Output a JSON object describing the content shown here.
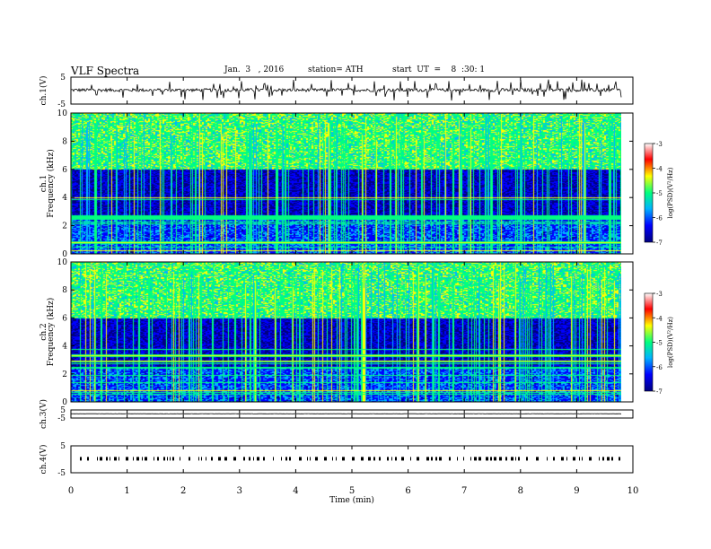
{
  "header": {
    "title": "VLF  Spectra",
    "date": "Jan.  3   , 2016",
    "station": "station= ATH",
    "start": "start  UT  =    8  :30: 1"
  },
  "chart_data": [
    {
      "id": "ch1-waveform",
      "type": "line",
      "ylabel": "ch.1(V)",
      "ylim": [
        -5,
        5
      ],
      "yticks": [
        "5",
        "-5"
      ],
      "baseline": 0.2,
      "noise": 0.6,
      "spikes": 70
    },
    {
      "id": "ch1-spectrogram",
      "type": "heatmap",
      "ylabel_channel": "ch.1",
      "ylabel": "Frequency  (kHz)",
      "ylim": [
        0,
        10
      ],
      "yticks": [
        "10",
        "8",
        "6",
        "4",
        "2",
        "0"
      ],
      "colorbar": {
        "label": "log(PSD)(V²/Hz)",
        "ticks": [
          "-3",
          "-4",
          "-5",
          "-6",
          "-7"
        ],
        "range": [
          -7,
          -3
        ]
      }
    },
    {
      "id": "ch2-spectrogram",
      "type": "heatmap",
      "ylabel_channel": "ch.2",
      "ylabel": "Frequency  (kHz)",
      "ylim": [
        0,
        10
      ],
      "yticks": [
        "10",
        "8",
        "6",
        "4",
        "2",
        "0"
      ],
      "colorbar": {
        "label": "log(PSD)(V²/Hz)",
        "ticks": [
          "-3",
          "-4",
          "-5",
          "-6",
          "-7"
        ],
        "range": [
          -7,
          -3
        ]
      }
    },
    {
      "id": "ch3-waveform",
      "type": "line",
      "ylabel": "ch.3(V)",
      "ylim": [
        -5,
        5
      ],
      "yticks": [
        "5",
        "-5"
      ],
      "baseline": 0.3,
      "noise": 0.15,
      "spikes": 0
    },
    {
      "id": "ch4-waveform",
      "type": "line",
      "ylabel": "ch.4(V)",
      "ylim": [
        -5,
        5
      ],
      "yticks": [
        "5",
        "-5"
      ],
      "baseline": 0.2,
      "noise": 0.0,
      "spikes": 0,
      "pulses": true
    }
  ],
  "xaxis": {
    "label": "Time  (min)",
    "ticks": [
      "0",
      "1",
      "2",
      "3",
      "4",
      "5",
      "6",
      "7",
      "8",
      "9",
      "10"
    ],
    "xlim": [
      0,
      10
    ],
    "data_end": 9.8
  },
  "colors": {
    "scale": [
      "#000080",
      "#0000ff",
      "#00b4ff",
      "#00ff80",
      "#ffff00",
      "#ff0000",
      "#ffffff"
    ]
  }
}
